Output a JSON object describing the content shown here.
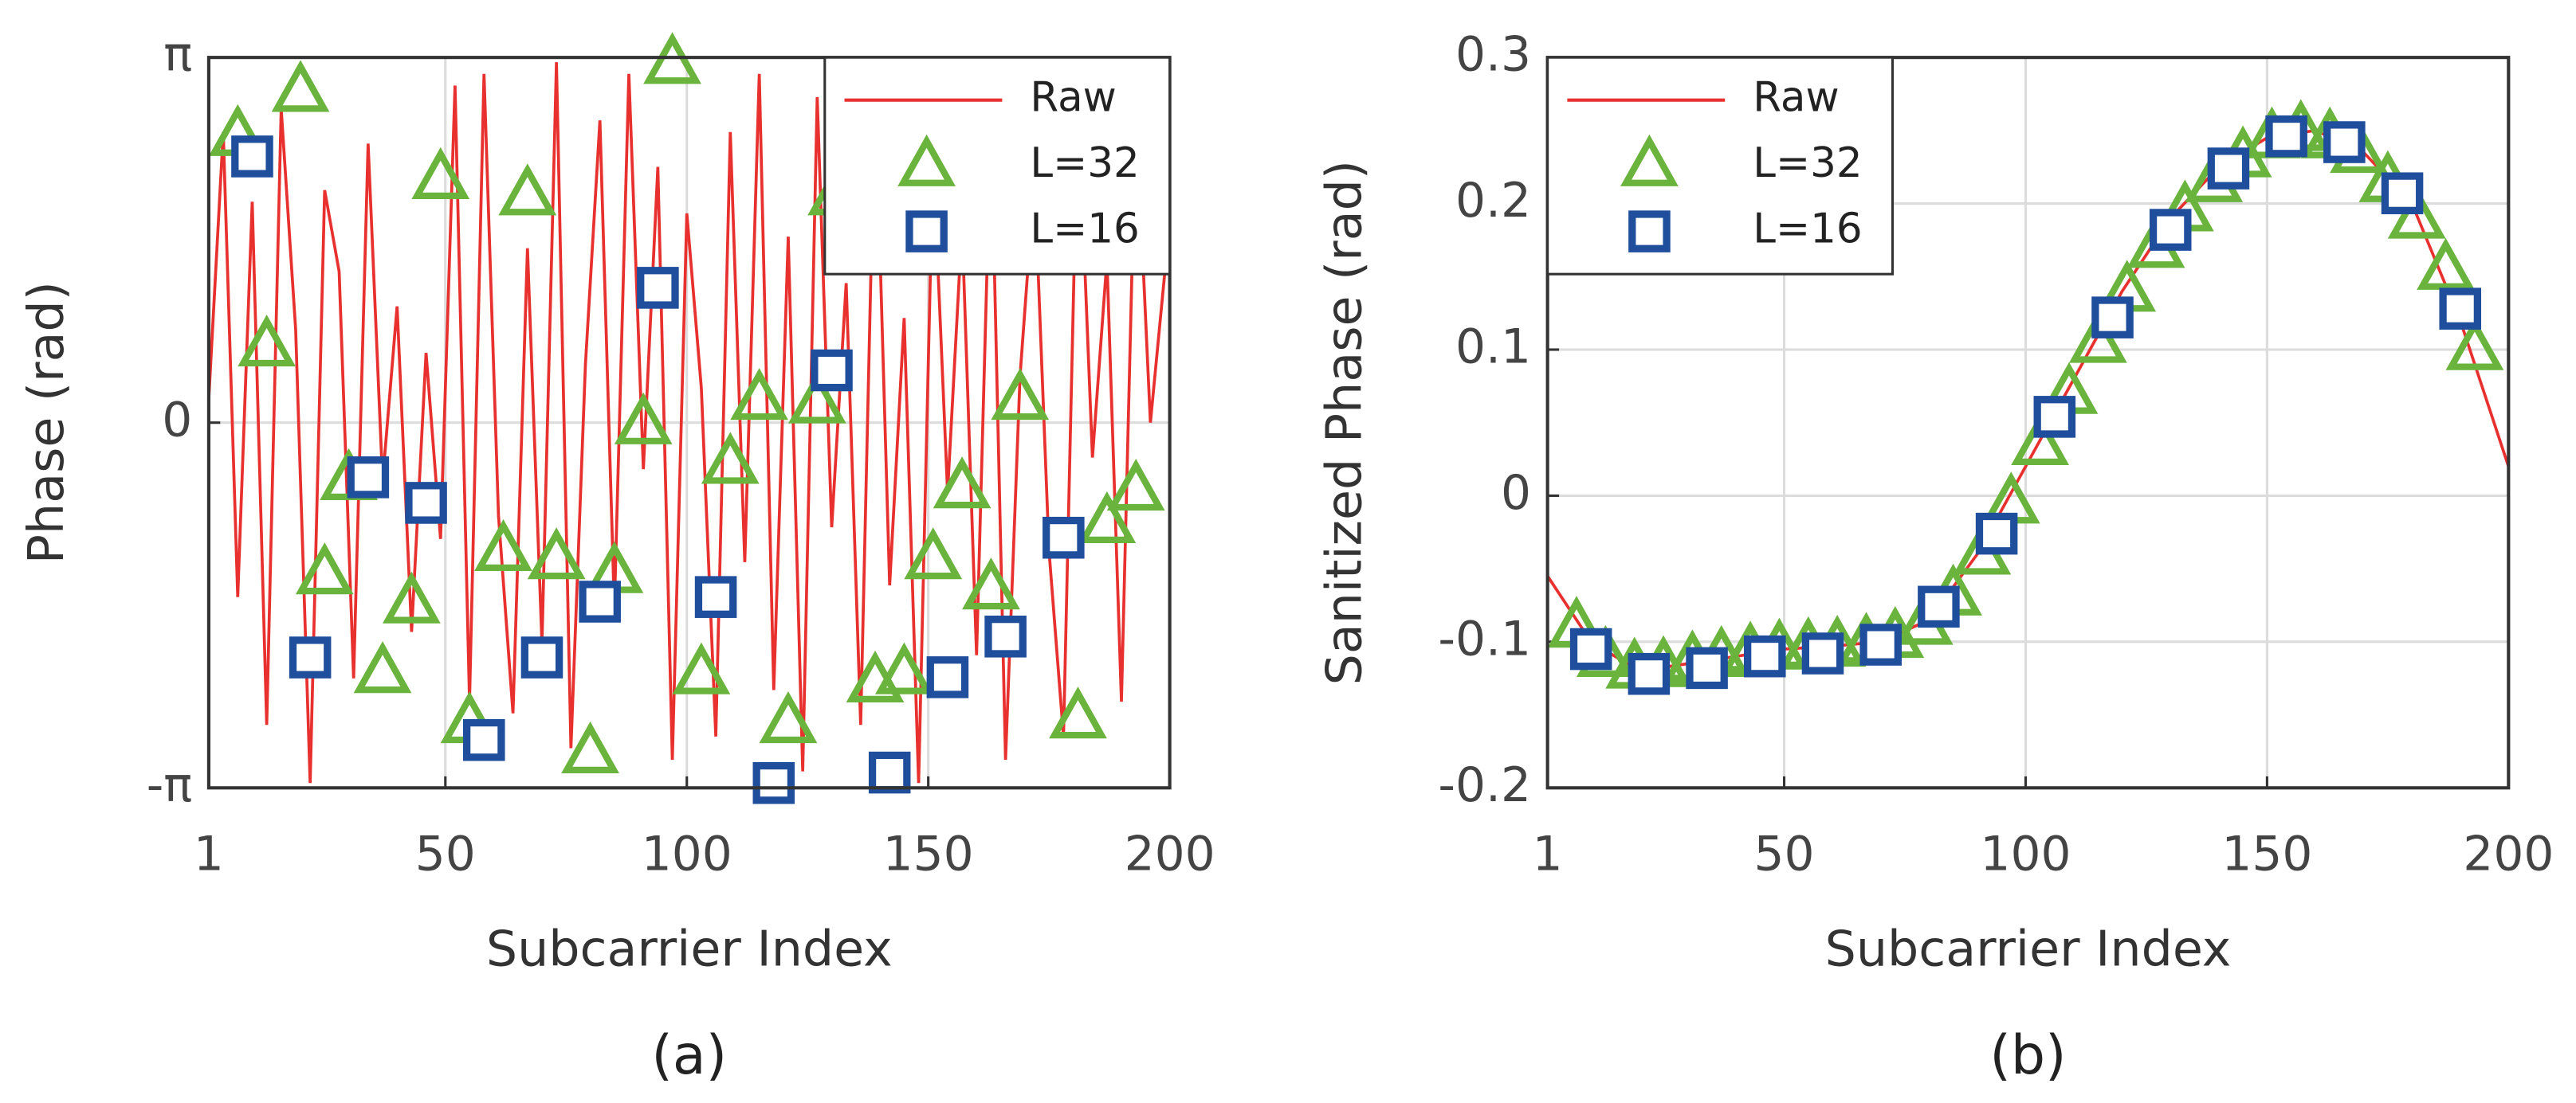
{
  "chart_data": [
    {
      "type": "line",
      "caption": "(a)",
      "xlabel": "Subcarrier Index",
      "ylabel": "Phase (rad)",
      "xlim": [
        1,
        200
      ],
      "xticks": [
        1,
        50,
        100,
        150,
        200
      ],
      "ylim": [
        -3.1416,
        3.1416
      ],
      "yticks": [
        {
          "value": -3.1416,
          "label": "-π"
        },
        0,
        {
          "value": 3.1416,
          "label": "π"
        }
      ],
      "grid": true,
      "legend": "upper right",
      "series": [
        {
          "name": "Raw",
          "color": "#e8312f",
          "marker": "none",
          "x": [
            1,
            4,
            7,
            10,
            13,
            16,
            19,
            22,
            25,
            28,
            31,
            34,
            37,
            40,
            43,
            46,
            49,
            52,
            55,
            58,
            61,
            64,
            67,
            70,
            73,
            76,
            79,
            82,
            85,
            88,
            91,
            94,
            97,
            100,
            103,
            106,
            109,
            112,
            115,
            118,
            121,
            124,
            127,
            130,
            133,
            136,
            139,
            142,
            145,
            148,
            151,
            154,
            157,
            160,
            163,
            166,
            169,
            172,
            175,
            178,
            181,
            184,
            187,
            190,
            193,
            196,
            199
          ],
          "values": [
            0.2,
            2.5,
            -1.5,
            1.9,
            -2.6,
            2.7,
            0.8,
            -3.1,
            2.0,
            1.3,
            -2.2,
            2.4,
            -0.5,
            1.0,
            -1.8,
            0.6,
            -1.0,
            2.9,
            -2.4,
            3.0,
            -0.8,
            -2.5,
            1.5,
            -1.9,
            3.1,
            -2.8,
            0.5,
            2.6,
            -1.6,
            3.0,
            -0.4,
            2.2,
            -2.9,
            1.8,
            0.3,
            -2.7,
            2.5,
            -1.2,
            3.0,
            -2.3,
            1.6,
            -3.0,
            2.8,
            -0.9,
            1.2,
            -2.6,
            2.9,
            -1.4,
            0.9,
            -3.1,
            2.3,
            -0.6,
            1.7,
            -2.0,
            2.6,
            -2.9,
            0.4,
            2.1,
            -1.1,
            -2.7,
            2.8,
            -0.3,
            1.4,
            -2.4,
            2.7,
            0.0,
            1.3
          ]
        },
        {
          "name": "L=32",
          "color": "#6ab43e",
          "marker": "triangle",
          "x": [
            7,
            20,
            13,
            25,
            30,
            37,
            43,
            49,
            55,
            62,
            67,
            73,
            80,
            85,
            91,
            97,
            103,
            109,
            115,
            121,
            127,
            131,
            139,
            145,
            151,
            157,
            163,
            169,
            181,
            187,
            193
          ],
          "values": [
            2.47,
            2.85,
            0.66,
            -1.3,
            -0.49,
            -2.15,
            -1.55,
            2.1,
            -2.58,
            -1.1,
            1.96,
            -1.17,
            -2.84,
            -1.29,
            -0.01,
            3.09,
            -2.16,
            -0.35,
            0.2,
            -2.58,
            0.17,
            1.96,
            -2.23,
            -2.16,
            -1.17,
            -0.56,
            -1.43,
            0.2,
            -2.54,
            -0.86,
            -0.58
          ]
        },
        {
          "name": "L=16",
          "color": "#1f4e9c",
          "marker": "square",
          "x": [
            10,
            22,
            34,
            46,
            58,
            70,
            82,
            94,
            106,
            118,
            130,
            142,
            154,
            166,
            178
          ],
          "values": [
            2.29,
            -2.02,
            -0.47,
            -0.69,
            -2.73,
            -2.02,
            -1.54,
            1.16,
            -1.5,
            -3.1,
            0.45,
            -3.01,
            -2.19,
            -1.84,
            -0.99
          ]
        }
      ]
    },
    {
      "type": "line",
      "caption": "(b)",
      "xlabel": "Subcarrier Index",
      "ylabel": "Sanitized Phase (rad)",
      "xlim": [
        1,
        200
      ],
      "xticks": [
        1,
        50,
        100,
        150,
        200
      ],
      "ylim": [
        -0.2,
        0.3
      ],
      "yticks": [
        -0.2,
        -0.1,
        0,
        0.1,
        0.2,
        0.3
      ],
      "grid": true,
      "legend": "upper left",
      "series": [
        {
          "name": "Raw",
          "color": "#e8312f",
          "marker": "none",
          "x": [
            1,
            10,
            20,
            30,
            40,
            50,
            60,
            70,
            80,
            90,
            100,
            110,
            120,
            130,
            140,
            150,
            160,
            170,
            180,
            190,
            200
          ],
          "values": [
            -0.055,
            -0.1,
            -0.12,
            -0.115,
            -0.11,
            -0.105,
            -0.103,
            -0.1,
            -0.085,
            -0.04,
            0.02,
            0.08,
            0.14,
            0.19,
            0.225,
            0.245,
            0.25,
            0.235,
            0.2,
            0.12,
            0.02
          ]
        },
        {
          "name": "L=32",
          "color": "#6ab43e",
          "marker": "triangle",
          "x": [
            7,
            13,
            19,
            25,
            31,
            37,
            43,
            49,
            55,
            61,
            67,
            73,
            79,
            85,
            91,
            97,
            103,
            109,
            115,
            121,
            127,
            133,
            139,
            145,
            151,
            157,
            163,
            169,
            175,
            181,
            187,
            193
          ],
          "values": [
            -0.09,
            -0.11,
            -0.118,
            -0.117,
            -0.113,
            -0.11,
            -0.107,
            -0.105,
            -0.104,
            -0.103,
            -0.101,
            -0.097,
            -0.088,
            -0.068,
            -0.04,
            -0.005,
            0.035,
            0.07,
            0.105,
            0.14,
            0.17,
            0.195,
            0.215,
            0.232,
            0.245,
            0.25,
            0.245,
            0.235,
            0.215,
            0.19,
            0.155,
            0.1
          ]
        },
        {
          "name": "L=16",
          "color": "#1f4e9c",
          "marker": "square",
          "x": [
            10,
            22,
            34,
            46,
            58,
            70,
            82,
            94,
            106,
            118,
            130,
            142,
            154,
            166,
            178,
            190
          ],
          "values": [
            -0.105,
            -0.122,
            -0.118,
            -0.11,
            -0.108,
            -0.102,
            -0.076,
            -0.026,
            0.054,
            0.122,
            0.182,
            0.224,
            0.246,
            0.242,
            0.207,
            0.128
          ]
        }
      ]
    }
  ]
}
